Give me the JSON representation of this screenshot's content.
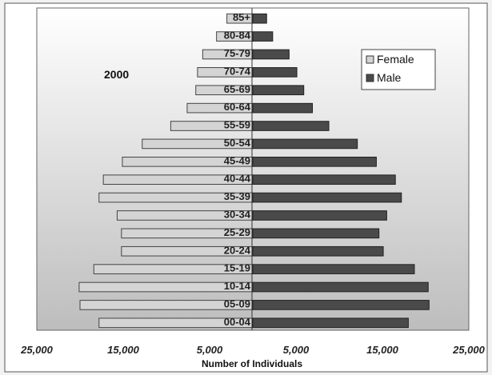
{
  "chart_data": {
    "type": "bar",
    "orientation": "horizontal",
    "layout": "population-pyramid",
    "annotation": "2000",
    "xlabel": "Number of Individuals",
    "x_tick_labels": [
      "25,000",
      "15,000",
      "5,000",
      "5,000",
      "15,000",
      "25,000"
    ],
    "xlim": [
      -25000,
      25000
    ],
    "legend_position": "top-right",
    "grid": false,
    "categories": [
      "00-04",
      "05-09",
      "10-14",
      "15-19",
      "20-24",
      "25-29",
      "30-34",
      "35-39",
      "40-44",
      "45-49",
      "50-54",
      "55-59",
      "60-64",
      "65-69",
      "70-74",
      "75-79",
      "80-84",
      "85+"
    ],
    "series": [
      {
        "name": "Female",
        "color": "#d4d4d4",
        "values": [
          17800,
          20000,
          20100,
          18400,
          15200,
          15200,
          15700,
          17800,
          17300,
          15100,
          12800,
          9500,
          7600,
          6600,
          6400,
          5800,
          4200,
          3000
        ]
      },
      {
        "name": "Male",
        "color": "#4a4a4a",
        "values": [
          18000,
          20400,
          20300,
          18700,
          15100,
          14600,
          15500,
          17200,
          16500,
          14300,
          12100,
          8800,
          6900,
          5900,
          5100,
          4200,
          2300,
          1600
        ]
      }
    ]
  }
}
